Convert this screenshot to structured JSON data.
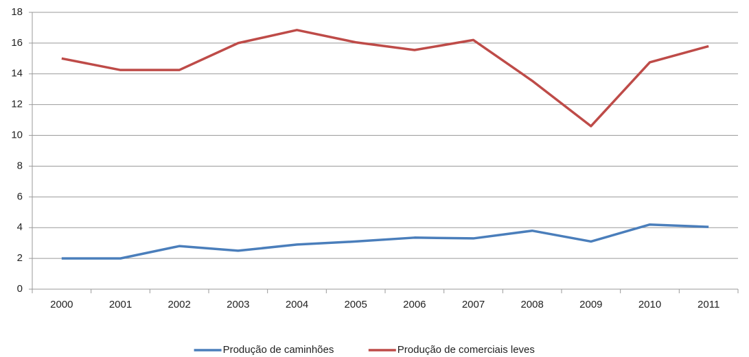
{
  "chart_data": {
    "type": "line",
    "categories": [
      "2000",
      "2001",
      "2002",
      "2003",
      "2004",
      "2005",
      "2006",
      "2007",
      "2008",
      "2009",
      "2010",
      "2011"
    ],
    "series": [
      {
        "name": "Produção de caminhões",
        "color": "#4a7ebb",
        "values": [
          2.0,
          2.0,
          2.8,
          2.5,
          2.9,
          3.1,
          3.35,
          3.3,
          3.8,
          3.1,
          4.2,
          4.05
        ]
      },
      {
        "name": "Produção de comerciais leves",
        "color": "#be4b48",
        "values": [
          15.0,
          14.25,
          14.25,
          16.0,
          16.85,
          16.05,
          15.55,
          16.2,
          13.55,
          10.6,
          14.75,
          15.8
        ]
      }
    ],
    "ylim": [
      0,
      18
    ],
    "yticks": [
      0,
      2,
      4,
      6,
      8,
      10,
      12,
      14,
      16,
      18
    ],
    "grid": true,
    "legend": "bottom"
  }
}
